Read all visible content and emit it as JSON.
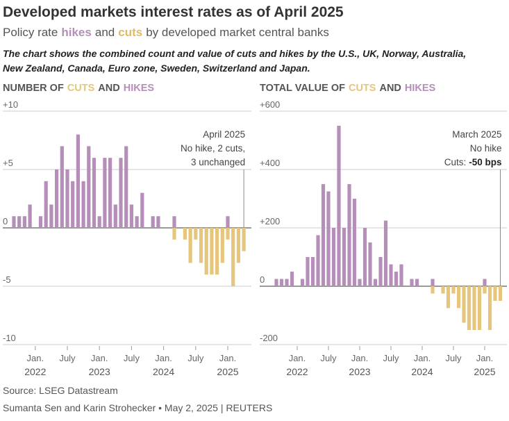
{
  "header": {
    "title": "Developed markets interest rates as of April 2025",
    "subtitle": [
      "Policy rate",
      "hikes",
      "and",
      "cuts",
      "by developed market central banks"
    ],
    "description": [
      "The chart shows the combined count and value of cuts and hikes by the U.S., UK, Norway, Australia,",
      "New Zealand, Canada, Euro zone, Sweden, Switzerland and Japan."
    ]
  },
  "footer": {
    "source": "Source: LSEG Datastream",
    "credit": "Sumanta Sen and Karin Strohecker • May 2, 2025 | REUTERS"
  },
  "chart_data": [
    {
      "type": "bar",
      "title_prefix": "NUMBER OF",
      "title_joiner": "AND",
      "categories": [
        "2021-09",
        "2021-10",
        "2021-11",
        "2021-12",
        "2022-01",
        "2022-02",
        "2022-03",
        "2022-04",
        "2022-05",
        "2022-06",
        "2022-07",
        "2022-08",
        "2022-09",
        "2022-10",
        "2022-11",
        "2022-12",
        "2023-01",
        "2023-02",
        "2023-03",
        "2023-04",
        "2023-05",
        "2023-06",
        "2023-07",
        "2023-08",
        "2023-09",
        "2023-10",
        "2023-11",
        "2023-12",
        "2024-01",
        "2024-02",
        "2024-03",
        "2024-04",
        "2024-05",
        "2024-06",
        "2024-07",
        "2024-08",
        "2024-09",
        "2024-10",
        "2024-11",
        "2024-12",
        "2025-01",
        "2025-02",
        "2025-03",
        "2025-04"
      ],
      "series": [
        {
          "name": "HIKES",
          "color": "#b58fba",
          "values": [
            1,
            1,
            1,
            2,
            null,
            1,
            4,
            2,
            5,
            7,
            5,
            4,
            8,
            4,
            7,
            6,
            1,
            6,
            6,
            2,
            6,
            7,
            2,
            1,
            3,
            null,
            1,
            1,
            null,
            null,
            1,
            null,
            null,
            null,
            null,
            null,
            null,
            null,
            null,
            null,
            1,
            null,
            null,
            null
          ]
        },
        {
          "name": "CUTS",
          "color": "#e6c67c",
          "values": [
            null,
            null,
            null,
            null,
            null,
            null,
            null,
            null,
            null,
            null,
            null,
            null,
            null,
            null,
            null,
            null,
            null,
            null,
            null,
            null,
            null,
            null,
            null,
            null,
            null,
            null,
            null,
            null,
            null,
            null,
            -1,
            null,
            -1,
            -3,
            -1,
            -3,
            -4,
            -4,
            -4,
            -3,
            -1,
            -5,
            -3,
            -2
          ]
        }
      ],
      "ylim": [
        -10,
        10
      ],
      "yticks": [
        {
          "value": 10,
          "label": "+10"
        },
        {
          "value": 5,
          "label": "+5"
        },
        0,
        -5,
        -10
      ],
      "grid": true,
      "xticks": [
        {
          "value": "2022-01",
          "label": "Jan.",
          "sublabel": "2022"
        },
        {
          "value": "2022-07",
          "label": "July"
        },
        {
          "value": "2023-01",
          "label": "Jan.",
          "sublabel": "2023"
        },
        {
          "value": "2023-07",
          "label": "July"
        },
        {
          "value": "2024-01",
          "label": "Jan.",
          "sublabel": "2024"
        },
        {
          "value": "2024-07",
          "label": "July"
        },
        {
          "value": "2025-01",
          "label": "Jan.",
          "sublabel": "2025"
        }
      ],
      "annotation": {
        "x": "2025-04",
        "lines": [
          "April 2025",
          "No hike, 2 cuts,",
          "3 unchanged"
        ]
      }
    },
    {
      "type": "bar",
      "title_prefix": "TOTAL VALUE OF",
      "title_joiner": "AND",
      "categories": [
        "2021-09",
        "2021-10",
        "2021-11",
        "2021-12",
        "2022-01",
        "2022-02",
        "2022-03",
        "2022-04",
        "2022-05",
        "2022-06",
        "2022-07",
        "2022-08",
        "2022-09",
        "2022-10",
        "2022-11",
        "2022-12",
        "2023-01",
        "2023-02",
        "2023-03",
        "2023-04",
        "2023-05",
        "2023-06",
        "2023-07",
        "2023-08",
        "2023-09",
        "2023-10",
        "2023-11",
        "2023-12",
        "2024-01",
        "2024-02",
        "2024-03",
        "2024-04",
        "2024-05",
        "2024-06",
        "2024-07",
        "2024-08",
        "2024-09",
        "2024-10",
        "2024-11",
        "2024-12",
        "2025-01",
        "2025-02",
        "2025-03",
        "2025-04"
      ],
      "series": [
        {
          "name": "HIKES",
          "color": "#b58fba",
          "values": [
            25,
            25,
            25,
            50,
            null,
            25,
            100,
            100,
            175,
            350,
            325,
            200,
            550,
            200,
            350,
            300,
            25,
            200,
            150,
            25,
            100,
            225,
            75,
            50,
            75,
            null,
            25,
            25,
            null,
            null,
            25,
            null,
            null,
            null,
            null,
            null,
            null,
            null,
            null,
            null,
            25,
            null,
            null,
            null
          ]
        },
        {
          "name": "CUTS",
          "color": "#e6c67c",
          "values": [
            null,
            null,
            null,
            null,
            null,
            null,
            null,
            null,
            null,
            null,
            null,
            null,
            null,
            null,
            null,
            null,
            null,
            null,
            null,
            null,
            null,
            null,
            null,
            null,
            null,
            null,
            null,
            null,
            null,
            null,
            -25,
            null,
            -25,
            -75,
            -25,
            -75,
            -125,
            -150,
            -150,
            -150,
            -25,
            -150,
            -50,
            -50
          ]
        }
      ],
      "ylim": [
        -200,
        600
      ],
      "yticks": [
        {
          "value": 600,
          "label": "+600"
        },
        {
          "value": 400,
          "label": "+400"
        },
        {
          "value": 200,
          "label": "+200"
        },
        0,
        -200
      ],
      "grid": true,
      "xticks": [
        {
          "value": "2022-01",
          "label": "Jan.",
          "sublabel": "2022"
        },
        {
          "value": "2022-07",
          "label": "July"
        },
        {
          "value": "2023-01",
          "label": "Jan.",
          "sublabel": "2023"
        },
        {
          "value": "2023-07",
          "label": "July"
        },
        {
          "value": "2024-01",
          "label": "Jan.",
          "sublabel": "2024"
        },
        {
          "value": "2024-07",
          "label": "July"
        },
        {
          "value": "2025-01",
          "label": "Jan.",
          "sublabel": "2025"
        }
      ],
      "annotation": {
        "x": "2025-04",
        "lines": [
          "March 2025",
          "No hike",
          [
            "Cuts:",
            "-50 bps"
          ]
        ]
      }
    }
  ]
}
